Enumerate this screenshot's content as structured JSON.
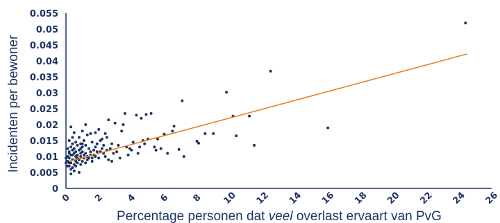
{
  "chart_data": {
    "type": "scatter",
    "xlabel_parts": [
      "Percentage personen dat ",
      "veel",
      " overlast ervaart van PvG"
    ],
    "ylabel": "Incidenten per bewoner",
    "xlim": [
      0,
      26
    ],
    "ylim": [
      0,
      0.055
    ],
    "x_ticks": [
      "0",
      "2",
      "4",
      "6",
      "8",
      "10",
      "12",
      "14",
      "16",
      "18",
      "20",
      "22",
      "24",
      "26"
    ],
    "y_ticks": [
      "0",
      "0.005",
      "0.01",
      "0.015",
      "0.02",
      "0.025",
      "0.03",
      "0.035",
      "0.04",
      "0.045",
      "0.05",
      "0.055"
    ],
    "grid": false,
    "colors": {
      "points": "#1f3564",
      "trendline": "#e6801e",
      "axis": "#1f3564"
    },
    "trendline": {
      "x": [
        0.2,
        24.5
      ],
      "y": [
        0.0085,
        0.0422
      ]
    },
    "points": [
      [
        24.4,
        0.0519
      ],
      [
        12.5,
        0.0368
      ],
      [
        9.8,
        0.0302
      ],
      [
        16.0,
        0.019
      ],
      [
        11.2,
        0.0227
      ],
      [
        10.2,
        0.0227
      ],
      [
        10.4,
        0.0165
      ],
      [
        11.5,
        0.0135
      ],
      [
        9.0,
        0.0172
      ],
      [
        8.5,
        0.0172
      ],
      [
        8.0,
        0.0148
      ],
      [
        8.1,
        0.0142
      ],
      [
        7.2,
        0.01
      ],
      [
        6.9,
        0.0122
      ],
      [
        6.6,
        0.0195
      ],
      [
        6.5,
        0.018
      ],
      [
        7.1,
        0.0275
      ],
      [
        6.0,
        0.017
      ],
      [
        5.6,
        0.0155
      ],
      [
        5.2,
        0.0235
      ],
      [
        4.9,
        0.0232
      ],
      [
        4.6,
        0.022
      ],
      [
        4.3,
        0.023
      ],
      [
        3.6,
        0.0235
      ],
      [
        3.5,
        0.02
      ],
      [
        3.4,
        0.018
      ],
      [
        2.6,
        0.0215
      ],
      [
        3.0,
        0.0205
      ],
      [
        2.4,
        0.0172
      ],
      [
        2.5,
        0.016
      ],
      [
        2.8,
        0.014
      ],
      [
        2.2,
        0.0155
      ],
      [
        2.0,
        0.0185
      ],
      [
        1.8,
        0.0175
      ],
      [
        1.5,
        0.0172
      ],
      [
        1.3,
        0.0168
      ],
      [
        1.0,
        0.018
      ],
      [
        1.2,
        0.02
      ],
      [
        0.8,
        0.016
      ],
      [
        0.5,
        0.0175
      ],
      [
        0.3,
        0.0193
      ],
      [
        0.4,
        0.016
      ],
      [
        0.2,
        0.015
      ],
      [
        0.6,
        0.0145
      ],
      [
        0.9,
        0.014
      ],
      [
        1.1,
        0.015
      ],
      [
        1.6,
        0.0145
      ],
      [
        1.9,
        0.014
      ],
      [
        2.3,
        0.0135
      ],
      [
        2.7,
        0.0125
      ],
      [
        3.1,
        0.0115
      ],
      [
        3.3,
        0.0095
      ],
      [
        3.7,
        0.013
      ],
      [
        3.9,
        0.0125
      ],
      [
        4.1,
        0.0145
      ],
      [
        4.5,
        0.013
      ],
      [
        4.7,
        0.015
      ],
      [
        4.8,
        0.014
      ],
      [
        5.0,
        0.0155
      ],
      [
        5.4,
        0.013
      ],
      [
        5.5,
        0.012
      ],
      [
        5.8,
        0.0125
      ],
      [
        6.2,
        0.011
      ],
      [
        4.4,
        0.011
      ],
      [
        4.0,
        0.012
      ],
      [
        3.8,
        0.0105
      ],
      [
        2.9,
        0.011
      ],
      [
        2.1,
        0.0115
      ],
      [
        1.7,
        0.012
      ],
      [
        1.4,
        0.0125
      ],
      [
        1.0,
        0.013
      ],
      [
        0.7,
        0.0135
      ],
      [
        0.3,
        0.013
      ],
      [
        0.1,
        0.0125
      ],
      [
        0.2,
        0.0115
      ],
      [
        0.4,
        0.012
      ],
      [
        0.6,
        0.0115
      ],
      [
        0.8,
        0.012
      ],
      [
        1.0,
        0.0115
      ],
      [
        1.2,
        0.011
      ],
      [
        1.5,
        0.0105
      ],
      [
        1.8,
        0.01
      ],
      [
        2.0,
        0.0095
      ],
      [
        2.4,
        0.01
      ],
      [
        2.6,
        0.009
      ],
      [
        1.6,
        0.0085
      ],
      [
        1.3,
        0.009
      ],
      [
        1.1,
        0.0095
      ],
      [
        0.9,
        0.01
      ],
      [
        0.7,
        0.0105
      ],
      [
        0.5,
        0.011
      ],
      [
        0.3,
        0.0105
      ],
      [
        0.1,
        0.01
      ],
      [
        0.2,
        0.0095
      ],
      [
        0.4,
        0.009
      ],
      [
        0.6,
        0.0085
      ],
      [
        0.8,
        0.009
      ],
      [
        1.0,
        0.0085
      ],
      [
        1.2,
        0.008
      ],
      [
        0.9,
        0.0075
      ],
      [
        0.7,
        0.008
      ],
      [
        0.5,
        0.0075
      ],
      [
        0.3,
        0.008
      ],
      [
        0.1,
        0.0085
      ],
      [
        0.2,
        0.007
      ],
      [
        0.4,
        0.0065
      ],
      [
        0.6,
        0.007
      ],
      [
        0.3,
        0.006
      ],
      [
        0.5,
        0.0055
      ],
      [
        0.8,
        0.005
      ],
      [
        0.3,
        0.0045
      ],
      [
        1.4,
        0.0095
      ],
      [
        1.7,
        0.0105
      ],
      [
        1.9,
        0.0115
      ],
      [
        2.2,
        0.0125
      ],
      [
        2.5,
        0.012
      ],
      [
        1.1,
        0.0105
      ],
      [
        0.9,
        0.011
      ],
      [
        0.6,
        0.01
      ],
      [
        0.4,
        0.0105
      ],
      [
        0.2,
        0.011
      ],
      [
        0.0,
        0.0095
      ],
      [
        0.0,
        0.008
      ],
      [
        0.1,
        0.007
      ],
      [
        0.7,
        0.0095
      ],
      [
        1.3,
        0.01
      ],
      [
        1.5,
        0.0115
      ],
      [
        2.8,
        0.0085
      ],
      [
        3.2,
        0.0135
      ],
      [
        0.5,
        0.0125
      ],
      [
        1.0,
        0.014
      ],
      [
        0.4,
        0.014
      ],
      [
        2.1,
        0.015
      ],
      [
        1.8,
        0.013
      ],
      [
        0.9,
        0.0125
      ],
      [
        1.2,
        0.0135
      ],
      [
        0.2,
        0.008
      ],
      [
        0.6,
        0.009
      ],
      [
        1.6,
        0.0095
      ],
      [
        2.3,
        0.011
      ]
    ]
  }
}
